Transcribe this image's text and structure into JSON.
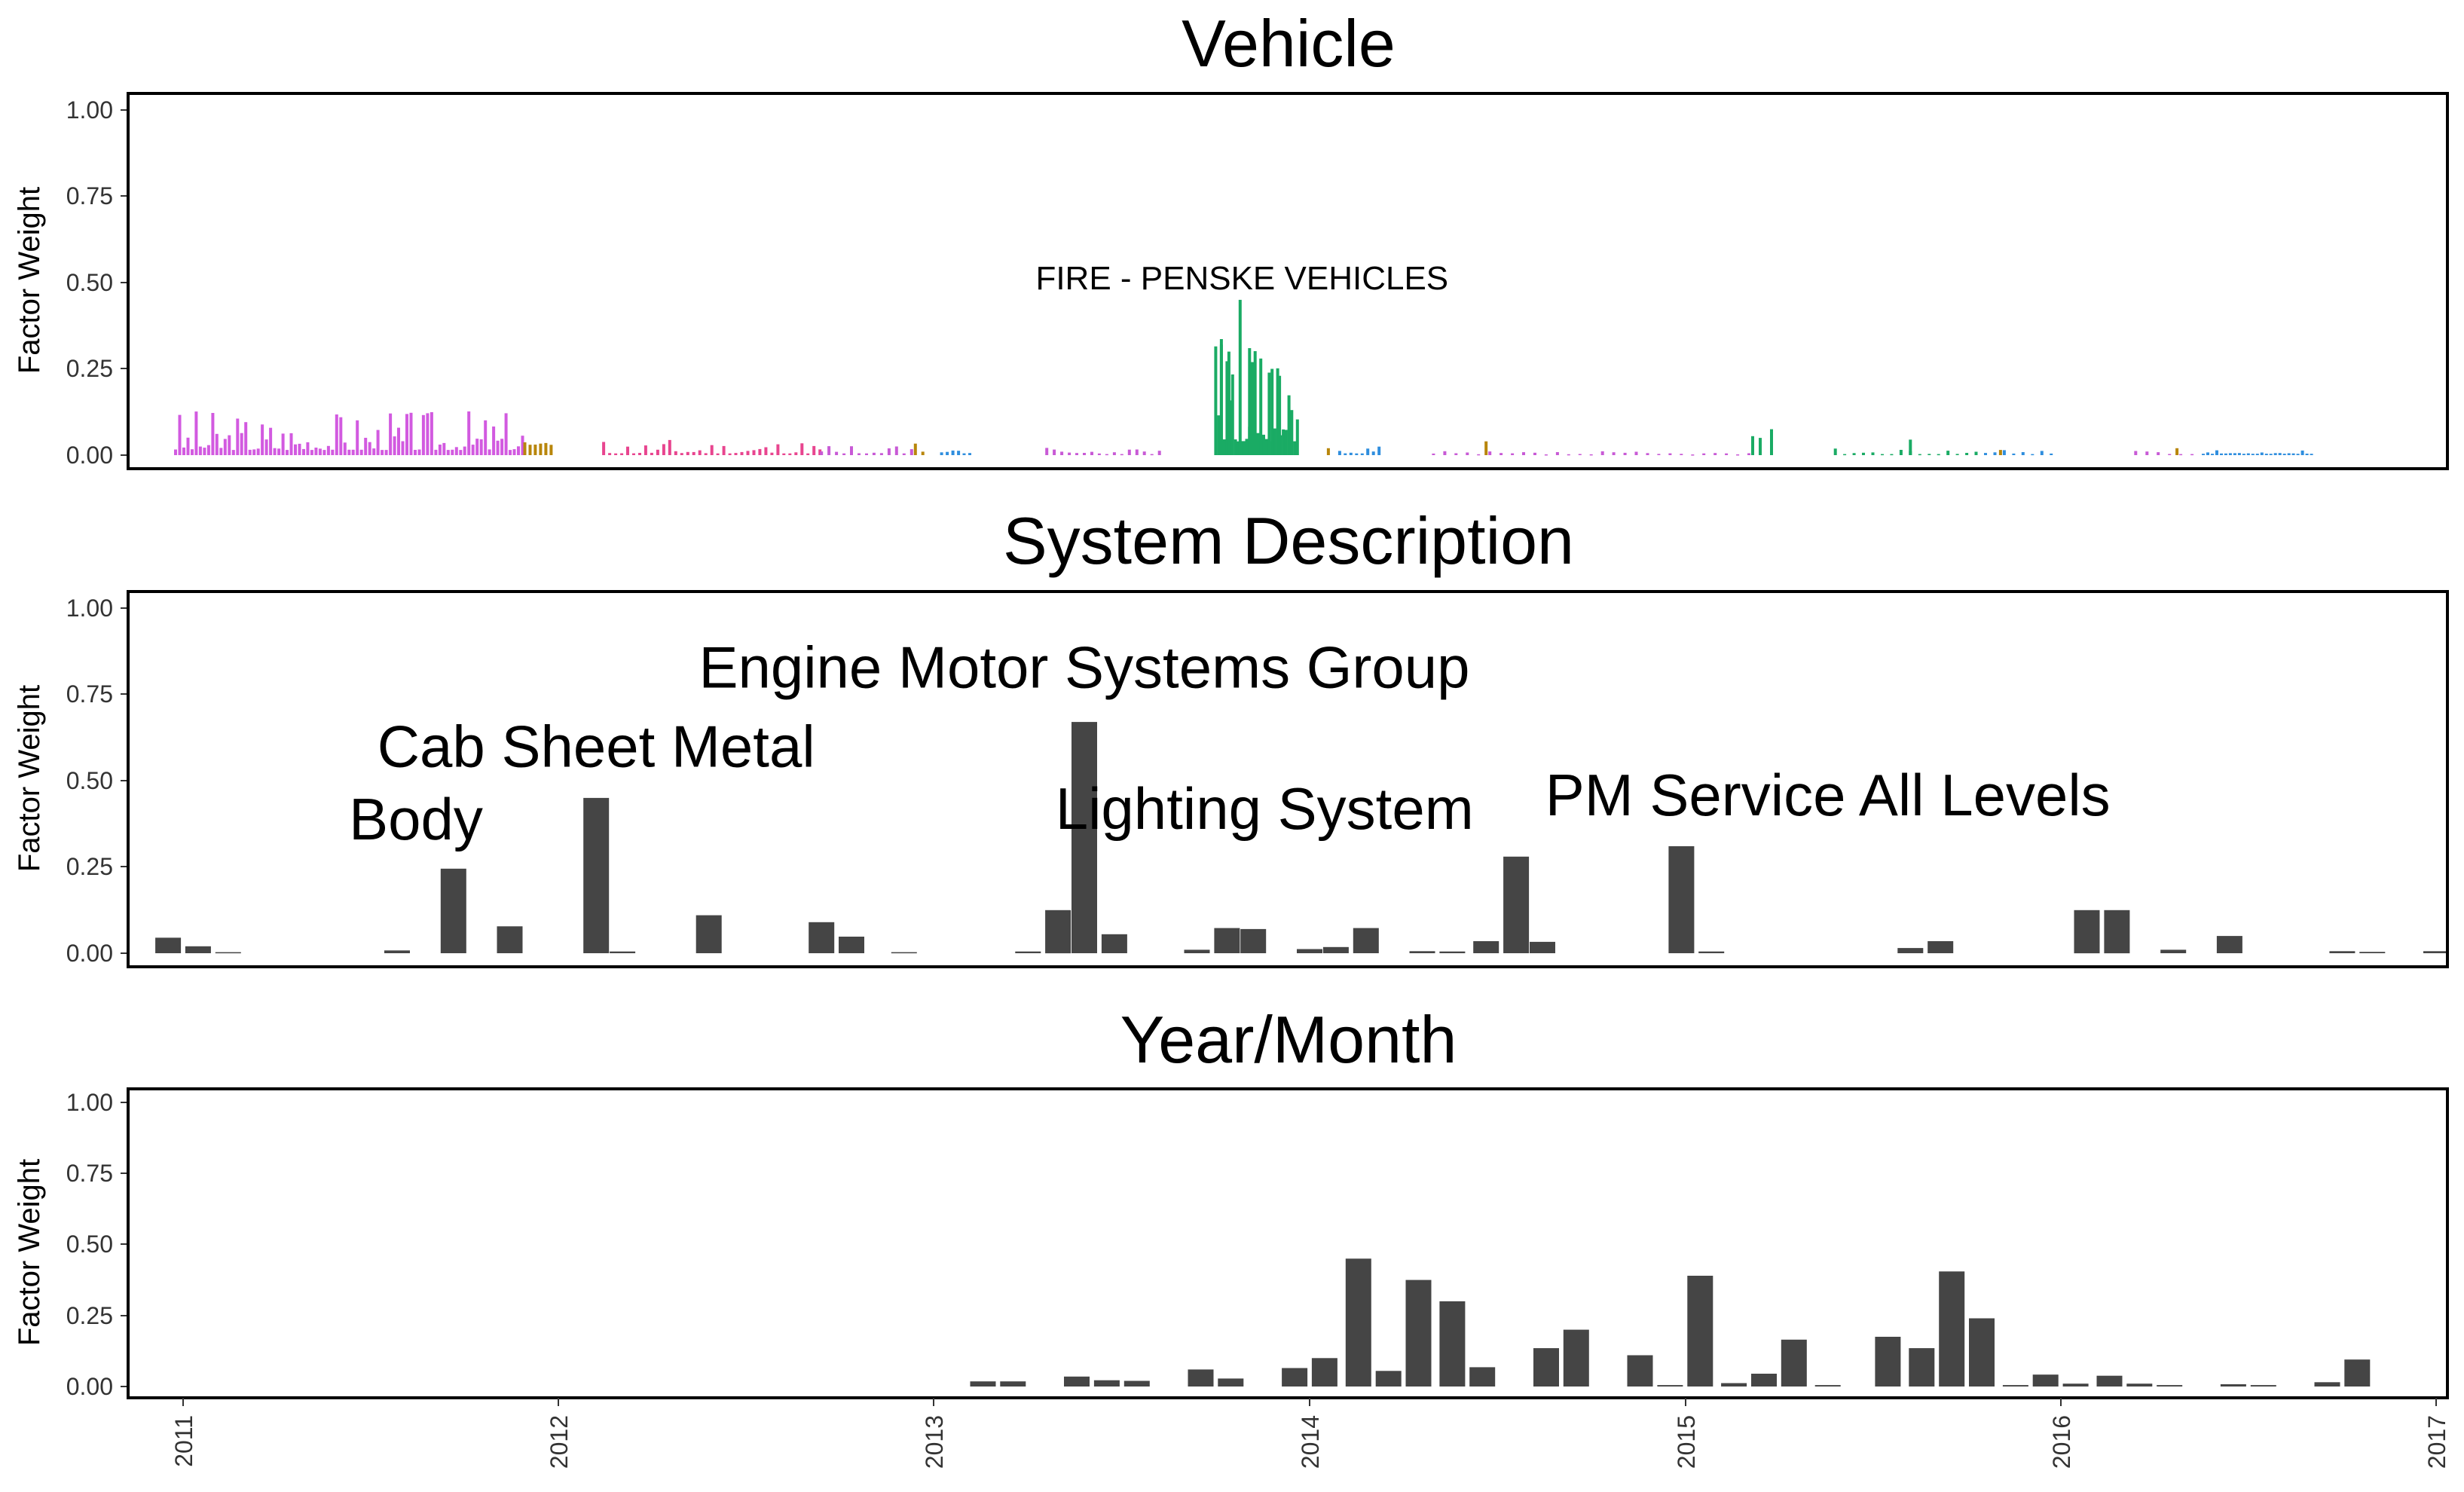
{
  "chart_data": [
    {
      "type": "bar",
      "title": "Vehicle",
      "ylabel": "Factor Weight",
      "ylim": [
        0,
        1.05
      ],
      "yticks": [
        "0.00",
        "0.25",
        "0.50",
        "0.75",
        "1.00"
      ],
      "xlim": [
        2011,
        2017
      ],
      "annotations": [
        {
          "text": "FIRE - PENSKE VEHICLES",
          "x": 2013.82,
          "y": 0.48,
          "size": "small"
        }
      ],
      "series": [
        {
          "color": "#d25ae0",
          "from": 2010.98,
          "to": 2011.91,
          "step": 0.011,
          "seed": 3,
          "max": 0.14,
          "baseline": 0.015
        },
        {
          "color": "#b8860b",
          "from": 2011.91,
          "to": 2011.99,
          "step": 0.014,
          "seed": 7,
          "max": 0.07,
          "baseline": 0.03
        },
        {
          "color": "#e8458f",
          "from": 2012.12,
          "to": 2012.7,
          "step": 0.016,
          "seed": 11,
          "max": 0.05,
          "baseline": 0.005
        },
        {
          "color": "#c85ad6",
          "from": 2012.7,
          "to": 2012.95,
          "step": 0.02,
          "seed": 13,
          "max": 0.035,
          "baseline": 0.005
        },
        {
          "color": "#b8860b",
          "from": 2012.95,
          "to": 2012.98,
          "step": 0.02,
          "seed": 17,
          "max": 0.04,
          "baseline": 0.01
        },
        {
          "color": "#2f8ede",
          "from": 2013.02,
          "to": 2013.1,
          "step": 0.015,
          "seed": 19,
          "max": 0.02,
          "baseline": 0.005
        },
        {
          "color": "#c85ad6",
          "from": 2013.3,
          "to": 2013.6,
          "step": 0.02,
          "seed": 23,
          "max": 0.025,
          "baseline": 0.003
        },
        {
          "color": "#1aab64",
          "from": 2013.75,
          "to": 2013.97,
          "step": 0.0075,
          "seed": 29,
          "max": 0.36,
          "baseline": 0.04
        },
        {
          "color": "#1aab64",
          "x": [
            2013.765,
            2013.785,
            2013.815,
            2013.84,
            2013.87,
            2013.9,
            2013.92
          ],
          "values": [
            0.32,
            0.3,
            0.45,
            0.31,
            0.28,
            0.25,
            0.23
          ]
        },
        {
          "color": "#2f8ede",
          "from": 2014.08,
          "to": 2014.2,
          "step": 0.015,
          "seed": 31,
          "max": 0.035,
          "baseline": 0.005
        },
        {
          "color": "#b8860b",
          "x": [
            2014.05,
            2014.47
          ],
          "values": [
            0.02,
            0.04
          ]
        },
        {
          "color": "#c85ad6",
          "from": 2014.33,
          "to": 2015.2,
          "step": 0.03,
          "seed": 37,
          "max": 0.012,
          "baseline": 0.002
        },
        {
          "color": "#1aab64",
          "x": [
            2015.18,
            2015.2,
            2015.23
          ],
          "values": [
            0.055,
            0.05,
            0.075
          ]
        },
        {
          "color": "#1aab64",
          "from": 2015.4,
          "to": 2015.78,
          "step": 0.025,
          "seed": 41,
          "max": 0.02,
          "baseline": 0.003
        },
        {
          "color": "#1aab64",
          "x": [
            2015.6
          ],
          "values": [
            0.045
          ]
        },
        {
          "color": "#2f8ede",
          "from": 2015.8,
          "to": 2016.0,
          "step": 0.025,
          "seed": 43,
          "max": 0.015,
          "baseline": 0.003
        },
        {
          "color": "#b8860b",
          "x": [
            2015.84,
            2016.31
          ],
          "values": [
            0.015,
            0.02
          ]
        },
        {
          "color": "#c85ad6",
          "from": 2016.2,
          "to": 2016.4,
          "step": 0.03,
          "seed": 47,
          "max": 0.012,
          "baseline": 0.003
        },
        {
          "color": "#2f8ede",
          "from": 2016.38,
          "to": 2016.67,
          "step": 0.012,
          "seed": 53,
          "max": 0.015,
          "baseline": 0.004
        }
      ]
    },
    {
      "type": "bar",
      "title": "System Description",
      "ylabel": "Factor Weight",
      "ylim": [
        0,
        1.05
      ],
      "yticks": [
        "0.00",
        "0.25",
        "0.50",
        "0.75",
        "1.00"
      ],
      "xlim": [
        2011,
        2017
      ],
      "color": "#454545",
      "annotations": [
        {
          "text": "Engine Motor Systems Group",
          "x": 2013.4,
          "y": 0.77,
          "size": "big"
        },
        {
          "text": "Cab Sheet Metal",
          "x": 2012.1,
          "y": 0.54,
          "size": "big"
        },
        {
          "text": "Body",
          "x": 2011.62,
          "y": 0.33,
          "size": "big"
        },
        {
          "text": "Lighting System",
          "x": 2013.88,
          "y": 0.36,
          "size": "big"
        },
        {
          "text": "PM Service All Levels",
          "x": 2015.38,
          "y": 0.4,
          "size": "big"
        }
      ],
      "x": [
        2010.96,
        2011.04,
        2011.12,
        2011.57,
        2011.72,
        2011.87,
        2012.1,
        2012.17,
        2012.4,
        2012.7,
        2012.78,
        2012.92,
        2013.25,
        2013.33,
        2013.4,
        2013.48,
        2013.7,
        2013.78,
        2013.85,
        2014.0,
        2014.07,
        2014.15,
        2014.3,
        2014.38,
        2014.47,
        2014.55,
        2014.62,
        2014.99,
        2015.07,
        2015.6,
        2015.68,
        2016.07,
        2016.15,
        2016.3,
        2016.45,
        2016.75,
        2016.83,
        2017.0
      ],
      "values": [
        0.045,
        0.02,
        0.003,
        0.008,
        0.245,
        0.078,
        0.45,
        0.005,
        0.11,
        0.09,
        0.048,
        0.003,
        0.005,
        0.125,
        0.67,
        0.055,
        0.01,
        0.073,
        0.07,
        0.012,
        0.018,
        0.073,
        0.006,
        0.005,
        0.035,
        0.28,
        0.033,
        0.31,
        0.005,
        0.015,
        0.035,
        0.125,
        0.125,
        0.01,
        0.05,
        0.006,
        0.004,
        0.006
      ]
    },
    {
      "type": "bar",
      "title": "Year/Month",
      "ylabel": "Factor Weight",
      "ylim": [
        0,
        1.05
      ],
      "yticks": [
        "0.00",
        "0.25",
        "0.50",
        "0.75",
        "1.00"
      ],
      "xticks": [
        "2011",
        "2012",
        "2013",
        "2014",
        "2015",
        "2016",
        "2017"
      ],
      "xlim": [
        2011,
        2017
      ],
      "color": "#454545",
      "x": [
        2013.13,
        2013.21,
        2013.38,
        2013.46,
        2013.54,
        2013.71,
        2013.79,
        2013.96,
        2014.04,
        2014.13,
        2014.21,
        2014.29,
        2014.38,
        2014.46,
        2014.63,
        2014.71,
        2014.88,
        2014.96,
        2015.04,
        2015.13,
        2015.21,
        2015.29,
        2015.38,
        2015.54,
        2015.63,
        2015.71,
        2015.79,
        2015.88,
        2015.96,
        2016.04,
        2016.13,
        2016.21,
        2016.29,
        2016.46,
        2016.54,
        2016.71,
        2016.79
      ],
      "values": [
        0.018,
        0.018,
        0.035,
        0.022,
        0.02,
        0.06,
        0.028,
        0.065,
        0.1,
        0.45,
        0.055,
        0.375,
        0.3,
        0.068,
        0.135,
        0.2,
        0.11,
        0.005,
        0.39,
        0.012,
        0.045,
        0.165,
        0.005,
        0.175,
        0.135,
        0.405,
        0.24,
        0.005,
        0.042,
        0.01,
        0.038,
        0.01,
        0.005,
        0.008,
        0.005,
        0.015,
        0.095
      ]
    }
  ]
}
